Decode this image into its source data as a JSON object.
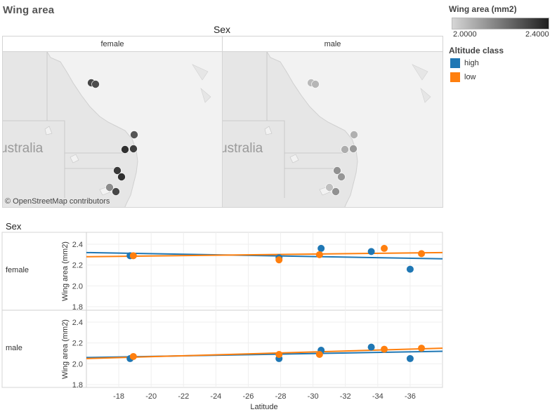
{
  "page_title": "Wing area",
  "top_header": "Sex",
  "bottom_header": "Sex",
  "maps": [
    {
      "panel": "female",
      "country_label": "Australia",
      "attribution": "© OpenStreetMap contributors"
    },
    {
      "panel": "male",
      "country_label": "Australia",
      "attribution": ""
    }
  ],
  "legend": {
    "colorscale_title": "Wing area (mm2)",
    "colorscale_min": "2.0000",
    "colorscale_max": "2.4000",
    "colorscale_range": [
      2.0,
      2.4
    ],
    "altitude_title": "Altitude class",
    "altitude_items": [
      {
        "label": "high",
        "color": "#1f77b4"
      },
      {
        "label": "low",
        "color": "#ff7f0e"
      }
    ]
  },
  "colors": {
    "high": "#1f77b4",
    "low": "#ff7f0e"
  },
  "chart_data": {
    "type": "scatter",
    "row_header": "Sex",
    "xlabel": "Latitude",
    "ylabel": "Wing area (mm2)",
    "xlim": [
      -16,
      -38
    ],
    "ylim": [
      1.8,
      2.45
    ],
    "x_ticks": [
      "-18",
      "-20",
      "-22",
      "-24",
      "-26",
      "-28",
      "-30",
      "-32",
      "-34",
      "-36"
    ],
    "y_ticks": [
      "2.4",
      "2.2",
      "2.0",
      "1.8"
    ],
    "grid": true,
    "trend_lines": "linear",
    "panels": [
      {
        "row": "female",
        "series": [
          {
            "name": "high",
            "x": [
              -18.7,
              -27.9,
              -30.5,
              -33.6,
              -36.0
            ],
            "y": [
              2.29,
              2.27,
              2.36,
              2.33,
              2.16
            ],
            "trend": {
              "y_start": 2.32,
              "y_end": 2.26
            }
          },
          {
            "name": "low",
            "x": [
              -18.9,
              -27.9,
              -30.4,
              -34.4,
              -36.7
            ],
            "y": [
              2.29,
              2.25,
              2.3,
              2.36,
              2.31
            ],
            "trend": {
              "y_start": 2.28,
              "y_end": 2.32
            }
          }
        ],
        "map_points": [
          {
            "x": -18.6,
            "wing": 2.31,
            "pos": "rockhampton"
          },
          {
            "x": -18.9,
            "wing": 2.3,
            "pos": "rockhampton"
          },
          {
            "x": -27.9,
            "wing": 2.28,
            "pos": "brisbane"
          },
          {
            "x": -30.4,
            "wing": 2.36,
            "pos": "coffs-w"
          },
          {
            "x": -30.5,
            "wing": 2.33,
            "pos": "coffs-e"
          },
          {
            "x": -33.6,
            "wing": 2.34,
            "pos": "sydney-1"
          },
          {
            "x": -34.4,
            "wing": 2.36,
            "pos": "sydney-2"
          },
          {
            "x": -36.0,
            "wing": 2.16,
            "pos": "se-1"
          },
          {
            "x": -36.7,
            "wing": 2.31,
            "pos": "se-2"
          }
        ]
      },
      {
        "row": "male",
        "series": [
          {
            "name": "high",
            "x": [
              -18.7,
              -27.9,
              -30.5,
              -33.6,
              -36.0
            ],
            "y": [
              2.05,
              2.05,
              2.13,
              2.16,
              2.05
            ],
            "trend": {
              "y_start": 2.06,
              "y_end": 2.12
            }
          },
          {
            "name": "low",
            "x": [
              -18.9,
              -27.9,
              -30.4,
              -34.4,
              -36.7
            ],
            "y": [
              2.07,
              2.09,
              2.09,
              2.14,
              2.15
            ],
            "trend": {
              "y_start": 2.05,
              "y_end": 2.15
            }
          }
        ],
        "map_points": [
          {
            "x": -18.6,
            "wing": 2.06,
            "pos": "rockhampton"
          },
          {
            "x": -18.9,
            "wing": 2.07,
            "pos": "rockhampton"
          },
          {
            "x": -27.9,
            "wing": 2.08,
            "pos": "brisbane"
          },
          {
            "x": -30.4,
            "wing": 2.09,
            "pos": "coffs-w"
          },
          {
            "x": -30.5,
            "wing": 2.13,
            "pos": "coffs-e"
          },
          {
            "x": -33.6,
            "wing": 2.15,
            "pos": "sydney-1"
          },
          {
            "x": -34.4,
            "wing": 2.14,
            "pos": "sydney-2"
          },
          {
            "x": -36.0,
            "wing": 2.05,
            "pos": "se-1"
          },
          {
            "x": -36.7,
            "wing": 2.15,
            "pos": "se-2"
          }
        ]
      }
    ]
  }
}
